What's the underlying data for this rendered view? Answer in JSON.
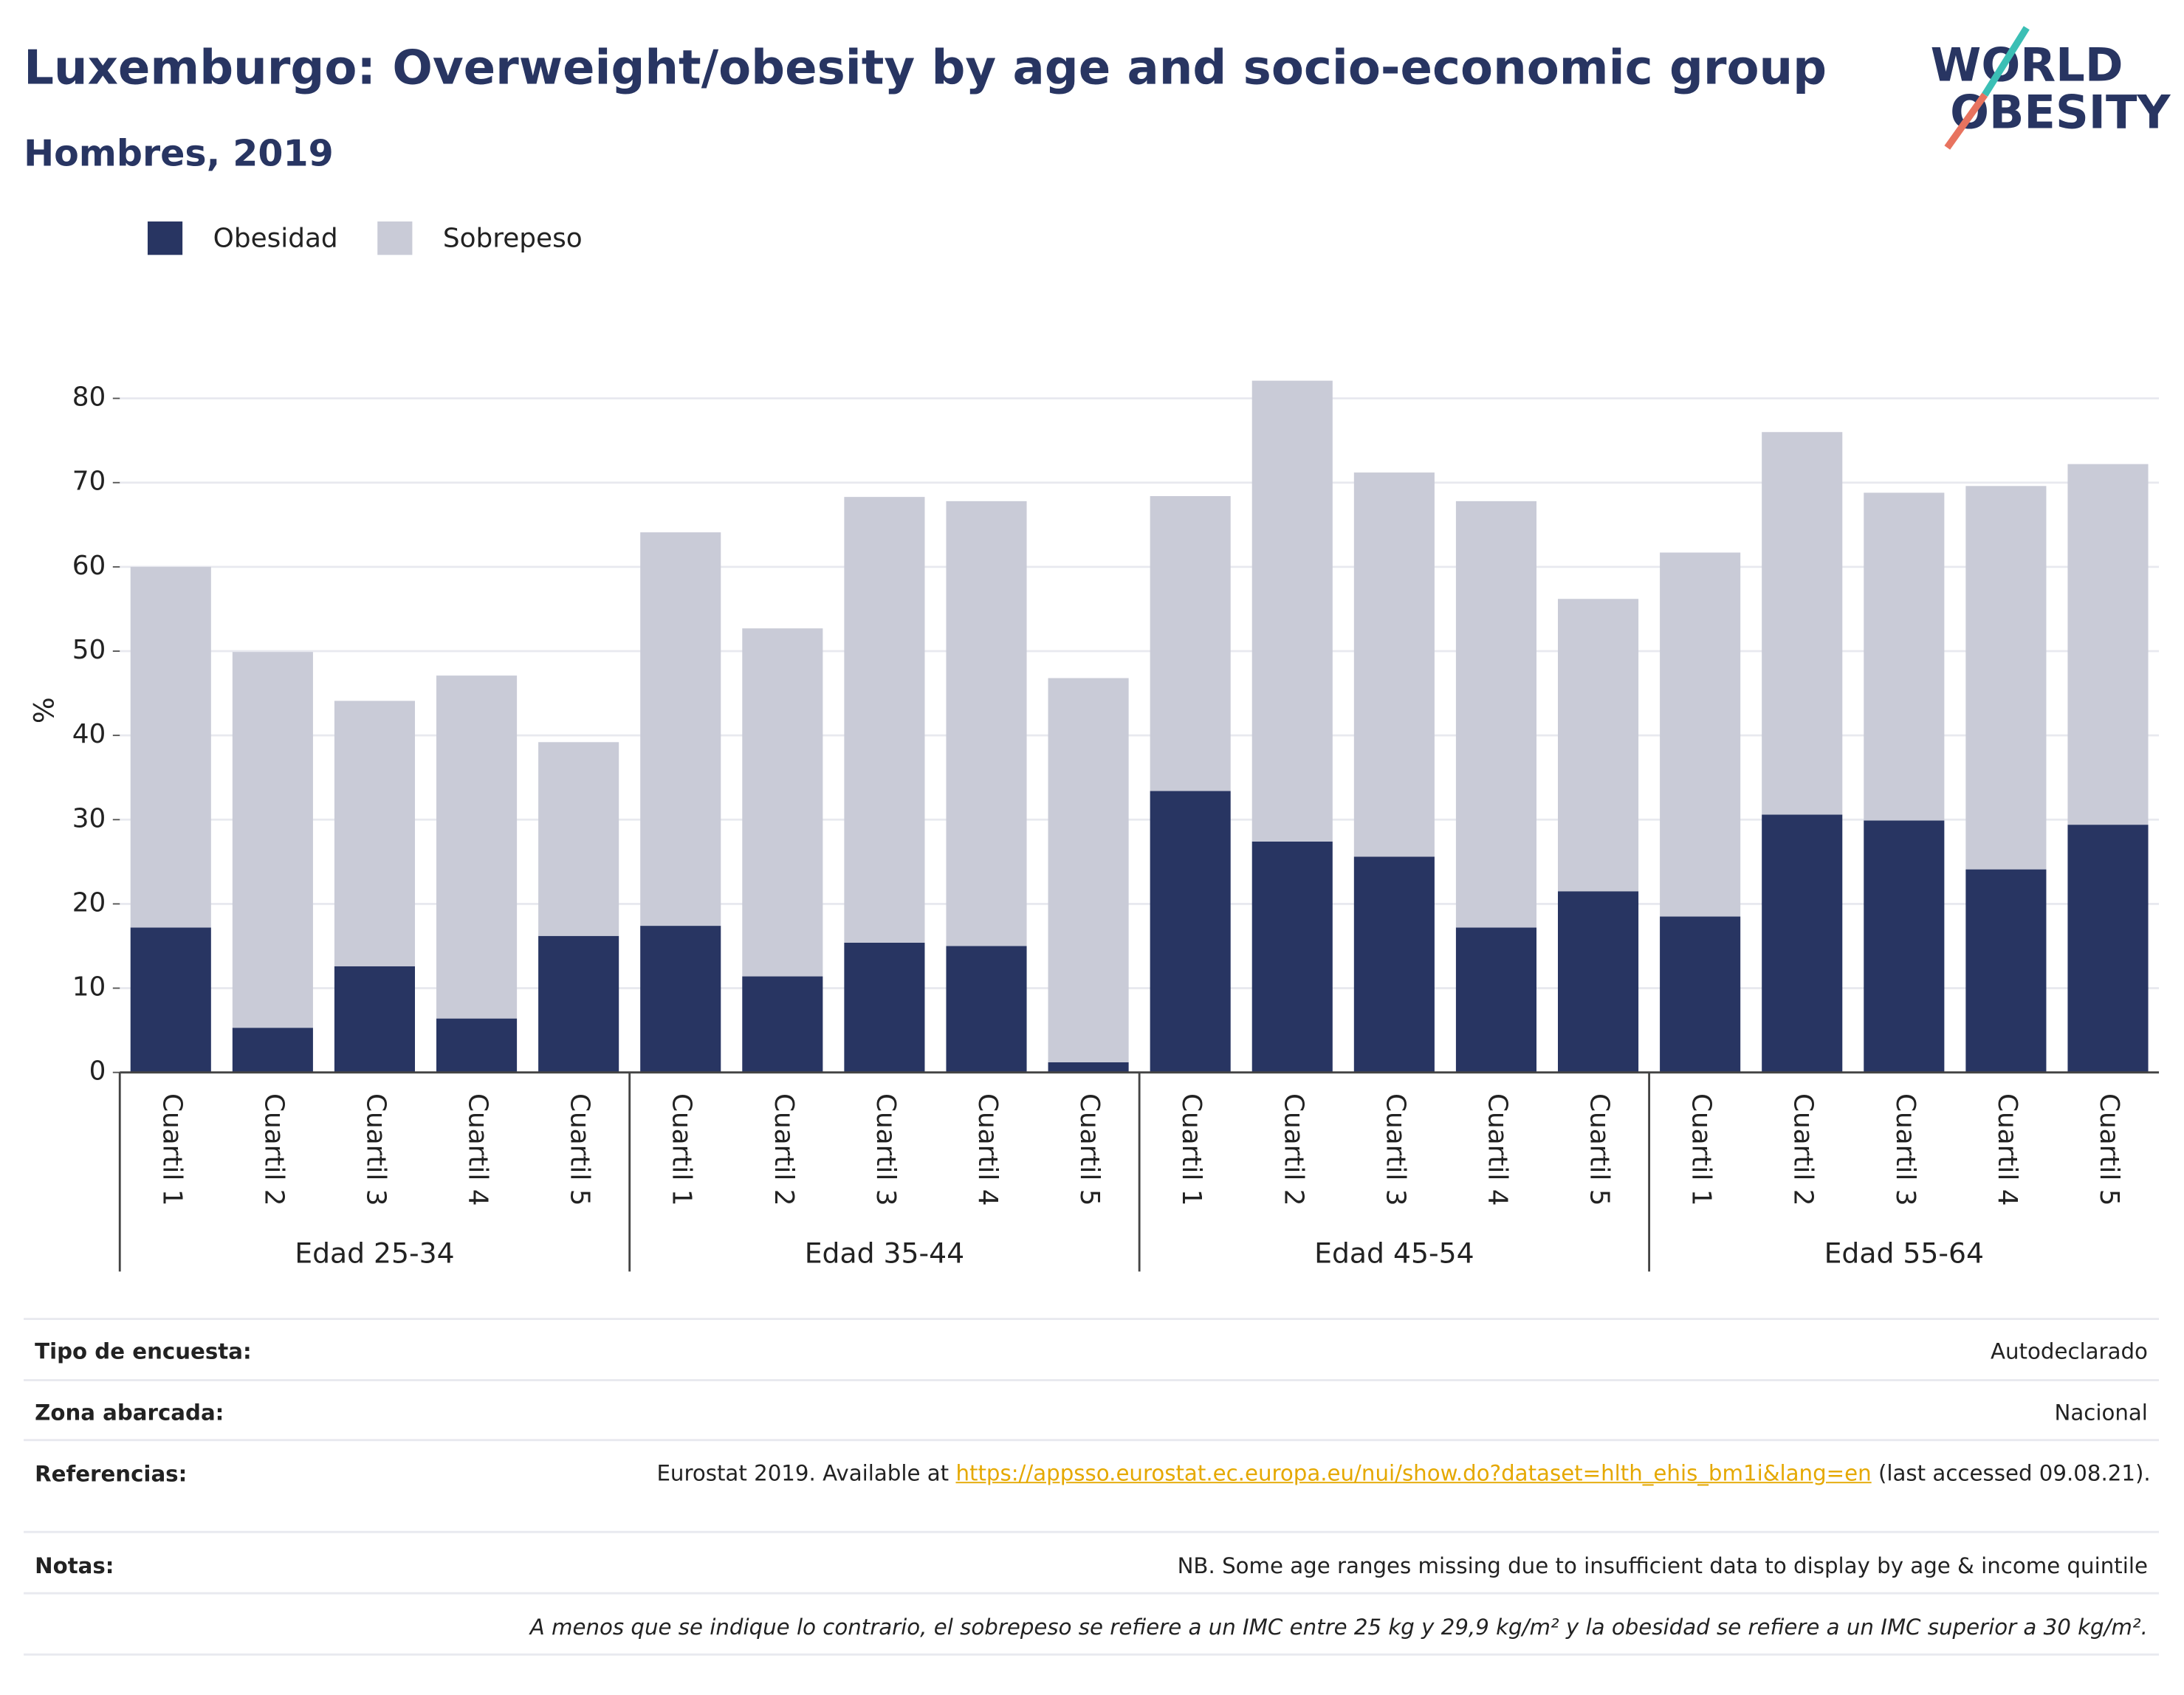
{
  "chart_data": {
    "type": "stacked_bar",
    "title": "Luxemburgo: Overweight/obesity by age and socio-economic group",
    "subtitle": "Hombres, 2019",
    "logo": [
      "WORLD",
      "OBESITY"
    ],
    "y_label": "%",
    "categories": [
      "Cuartil 1",
      "Cuartil 2",
      "Cuartil 3",
      "Cuartil 4",
      "Cuartil 5",
      "Cuartil 1",
      "Cuartil 2",
      "Cuartil 3",
      "Cuartil 4",
      "Cuartil 5",
      "Cuartil 1",
      "Cuartil 2",
      "Cuartil 3",
      "Cuartil 4",
      "Cuartil 5",
      "Cuartil 1",
      "Cuartil 2",
      "Cuartil 3",
      "Cuartil 4",
      "Cuartil 5"
    ],
    "groups": [
      "Edad 25-34",
      "Edad 35-44",
      "Edad 45-54",
      "Edad 55-64"
    ],
    "series": [
      {
        "name": "Obesidad",
        "color": "#283562",
        "values": [
          17.2,
          5.3,
          12.6,
          6.4,
          16.2,
          17.4,
          11.4,
          15.4,
          15.0,
          1.2,
          33.4,
          27.4,
          25.6,
          17.2,
          21.5,
          18.5,
          30.6,
          29.9,
          24.1,
          29.4
        ]
      },
      {
        "name": "Sobrepeso",
        "color": "#c9cbd7",
        "values": [
          42.8,
          44.6,
          31.5,
          40.7,
          23.0,
          46.7,
          41.3,
          52.9,
          52.8,
          45.6,
          35.0,
          54.7,
          45.6,
          50.6,
          34.7,
          43.2,
          45.4,
          38.9,
          45.5,
          42.8
        ]
      }
    ],
    "ylim": [
      0,
      86
    ],
    "yticks": [
      0,
      10,
      20,
      30,
      40,
      50,
      60,
      70,
      80
    ],
    "grid": true,
    "legend": "top-left"
  },
  "footer": {
    "rows": [
      {
        "label": "Tipo de encuesta:",
        "value": "Autodeclarado"
      },
      {
        "label": "Zona abarcada:",
        "value": "Nacional"
      }
    ],
    "references": {
      "label": "Referencias:",
      "text": "Eurostat 2019. Available at",
      "link": "https://appsso.eurostat.ec.europa.eu/nui/show.do?dataset=hlth_ehis_bm1i&lang=en",
      "after": "(last accessed 09.08.21)."
    },
    "notes": {
      "label": "Notas:",
      "value": "NB. Some age ranges missing due to insufficient data to display by age & income quintile"
    },
    "definition": "A menos que se indique lo contrario, el sobrepeso se refiere a un IMC entre 25 kg y 29,9 kg/m² y la obesidad se refiere a un IMC superior a 30 kg/m²."
  }
}
